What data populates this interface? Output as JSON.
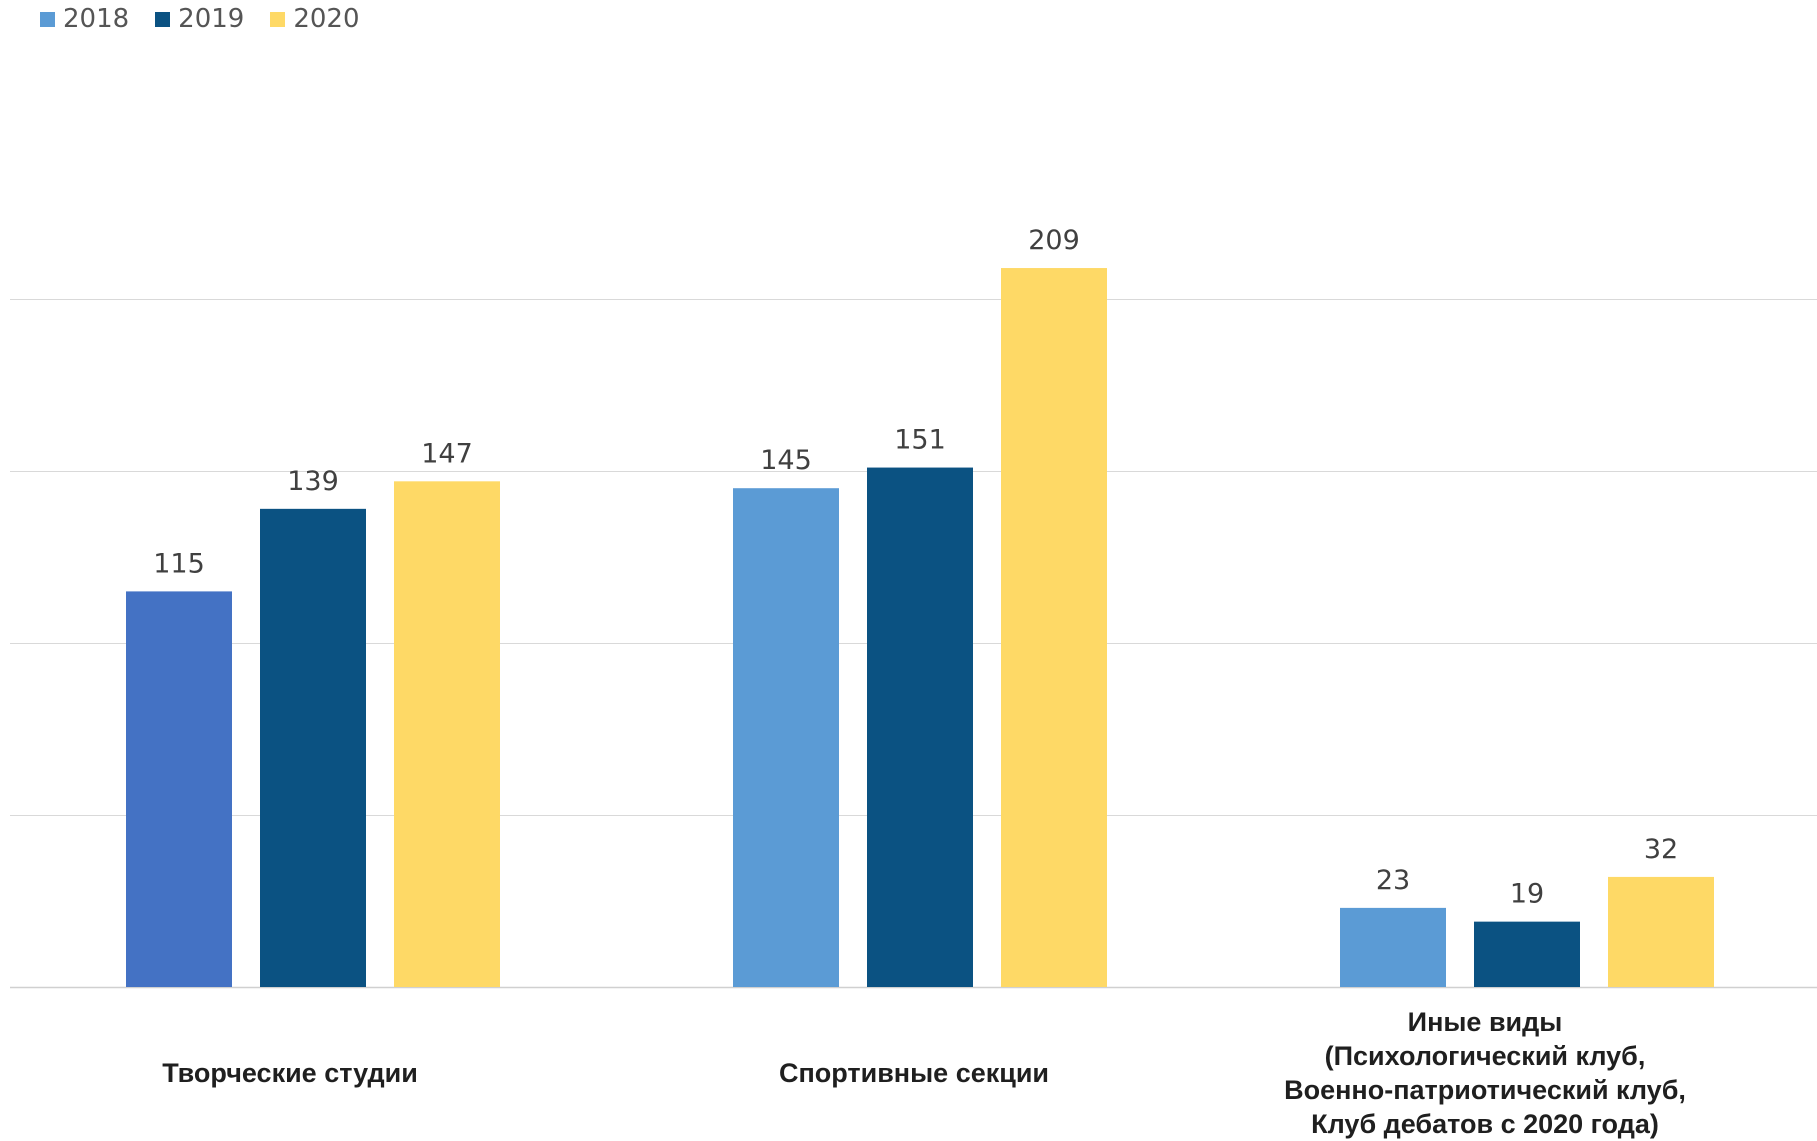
{
  "legend": [
    {
      "label": "2018",
      "color": "#5B9BD5"
    },
    {
      "label": "2019",
      "color": "#0B5282"
    },
    {
      "label": "2020",
      "color": "#FED966"
    }
  ],
  "chart_data": {
    "type": "bar",
    "categories": [
      "Творческие студии",
      "Спортивные секции",
      "Иные виды (Психологический клуб, Военно-патриотический клуб, Клуб дебатов с 2020 года)"
    ],
    "category_label_lines": [
      [
        "Творческие студии"
      ],
      [
        "Спортивные секции"
      ],
      [
        "Иные виды",
        "(Психологический клуб,",
        "Военно-патриотический клуб,",
        "Клуб дебатов с 2020 года)"
      ]
    ],
    "series": [
      {
        "name": "2018",
        "values": [
          115,
          145,
          23
        ],
        "color": "#5B9BD5",
        "point_colors": [
          "#4472C4",
          null,
          null
        ]
      },
      {
        "name": "2019",
        "values": [
          139,
          151,
          19
        ],
        "color": "#0B5282"
      },
      {
        "name": "2020",
        "values": [
          147,
          209,
          32
        ],
        "color": "#FED966"
      }
    ],
    "ylim": [
      0,
      250
    ],
    "gridlines": [
      0,
      50,
      100,
      150,
      200
    ],
    "grid": true,
    "legend_position": "top-left",
    "xlabel": "",
    "ylabel": "",
    "title": ""
  }
}
